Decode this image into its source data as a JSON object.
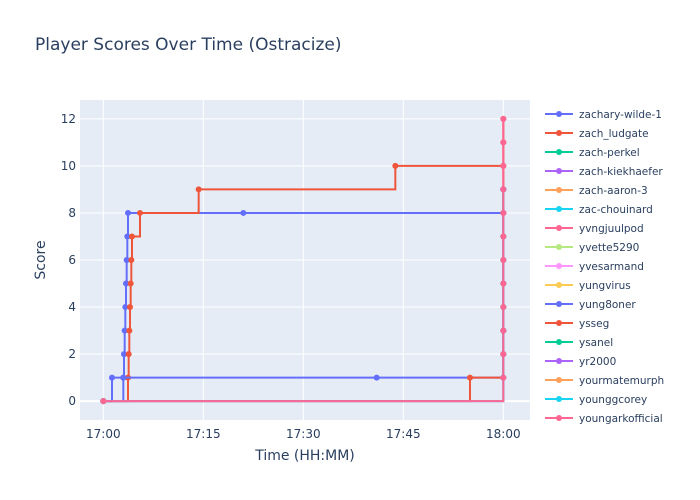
{
  "chart_data": {
    "type": "line",
    "title": "Player Scores Over Time (Ostracize)",
    "xlabel": "Time (HH:MM)",
    "ylabel": "Score",
    "x_ticks": [
      "17:00",
      "17:15",
      "17:30",
      "17:45",
      "18:00"
    ],
    "x_tick_minutes": [
      0,
      15,
      30,
      45,
      60
    ],
    "xlim_minutes": [
      -3.5,
      64
    ],
    "y_ticks": [
      0,
      2,
      4,
      6,
      8,
      10,
      12
    ],
    "ylim": [
      -0.8,
      12.8
    ],
    "line_shape": "step-after",
    "grid": true,
    "legend_position": "right",
    "background": "#e5ecf6",
    "series": [
      {
        "name": "zachary-wilde-1",
        "color": "#636efa",
        "x": [
          0,
          1.3,
          3.0,
          3.1,
          3.2,
          3.3,
          3.4,
          3.5,
          3.6,
          3.7,
          21.0,
          60.0,
          60.0
        ],
        "y": [
          0,
          1,
          1,
          2,
          3,
          4,
          5,
          6,
          7,
          8,
          8,
          9,
          9
        ]
      },
      {
        "name": "zach_ludgate",
        "color": "#ef553b",
        "x": [
          0,
          3.7,
          3.8,
          3.9,
          4.0,
          4.1,
          4.2,
          4.3,
          5.5,
          14.3,
          43.8,
          60.0,
          60.0
        ],
        "y": [
          0,
          1,
          2,
          3,
          4,
          5,
          6,
          7,
          8,
          9,
          10,
          11,
          12
        ]
      },
      {
        "name": "zach-perkel",
        "color": "#00cc96",
        "x": [
          0
        ],
        "y": [
          0
        ]
      },
      {
        "name": "zach-kiekhaefer",
        "color": "#ab63fa",
        "x": [
          0
        ],
        "y": [
          0
        ]
      },
      {
        "name": "zach-aaron-3",
        "color": "#ffa15a",
        "x": [
          0
        ],
        "y": [
          0
        ]
      },
      {
        "name": "zac-chouinard",
        "color": "#19d3f3",
        "x": [
          0
        ],
        "y": [
          0
        ]
      },
      {
        "name": "yvngjuulpod",
        "color": "#ff6692",
        "x": [
          0
        ],
        "y": [
          0
        ]
      },
      {
        "name": "yvette5290",
        "color": "#b6e880",
        "x": [
          0
        ],
        "y": [
          0
        ]
      },
      {
        "name": "yvesarmand",
        "color": "#ff97ff",
        "x": [
          0
        ],
        "y": [
          0
        ]
      },
      {
        "name": "yungvirus",
        "color": "#fecb52",
        "x": [
          0
        ],
        "y": [
          0
        ]
      },
      {
        "name": "yung8oner",
        "color": "#636efa",
        "x": [
          0,
          3.0,
          41.0,
          60.0,
          60.0,
          60.0,
          60.0,
          60.0,
          60.0,
          60.0,
          60.0
        ],
        "y": [
          0,
          1,
          1,
          2,
          3,
          4,
          5,
          6,
          7,
          8,
          9
        ]
      },
      {
        "name": "ysseg",
        "color": "#ef553b",
        "x": [
          0,
          55.0,
          60.0,
          60.0,
          60.0,
          60.0,
          60.0,
          60.0,
          60.0,
          60.0,
          60.0,
          60.0
        ],
        "y": [
          0,
          1,
          1,
          2,
          3,
          4,
          5,
          6,
          7,
          8,
          9,
          10
        ]
      },
      {
        "name": "ysanel",
        "color": "#00cc96",
        "x": [
          0
        ],
        "y": [
          0
        ]
      },
      {
        "name": "yr2000",
        "color": "#ab63fa",
        "x": [
          0,
          60.0,
          60.0
        ],
        "y": [
          0,
          3,
          8
        ]
      },
      {
        "name": "yourmatemurph",
        "color": "#ffa15a",
        "x": [
          0
        ],
        "y": [
          0
        ]
      },
      {
        "name": "younggcorey",
        "color": "#19d3f3",
        "x": [
          0,
          60.0,
          60.0,
          60.0,
          60.0,
          60.0,
          60.0,
          60.0,
          60.0
        ],
        "y": [
          0,
          1,
          2,
          3,
          4,
          5,
          6,
          7,
          9
        ]
      },
      {
        "name": "youngarkofficial",
        "color": "#ff6692",
        "x": [
          0,
          60.0,
          60.0,
          60.0,
          60.0,
          60.0,
          60.0,
          60.0,
          60.0,
          60.0,
          60.0,
          60.0,
          60.0
        ],
        "y": [
          0,
          1,
          2,
          3,
          4,
          5,
          6,
          7,
          8,
          9,
          10,
          11,
          12
        ]
      }
    ]
  }
}
